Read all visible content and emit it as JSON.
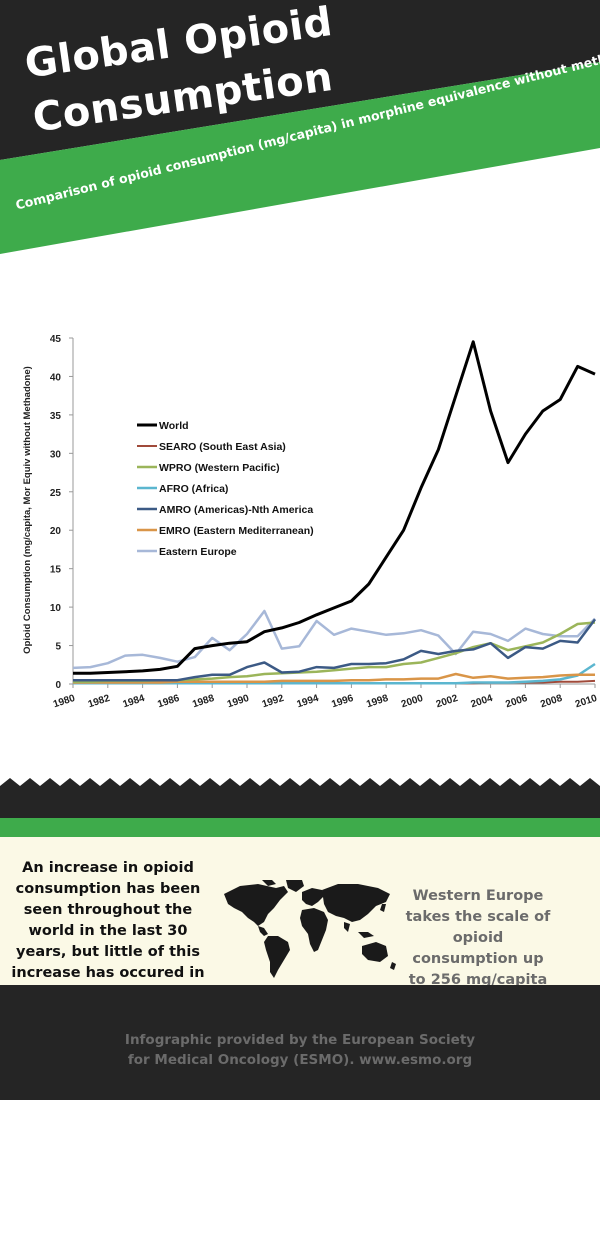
{
  "header": {
    "title_line1": "Global Opioid",
    "title_line2": "Consumption",
    "subtitle": "Comparison of opioid consumption (mg/capita) in morphine equivalence without methadone",
    "colors": {
      "dark": "#252525",
      "green": "#3eab4b"
    }
  },
  "chart_data": {
    "type": "line",
    "title": "",
    "xlabel": "",
    "ylabel": "Opioid Consumption (mg/capita, Mor Equiv without Methadone)",
    "xlim": [
      1980,
      2010
    ],
    "ylim": [
      0,
      45
    ],
    "yticks": [
      0,
      5,
      10,
      15,
      20,
      25,
      30,
      35,
      40,
      45
    ],
    "xticks": [
      1980,
      1982,
      1984,
      1986,
      1988,
      1990,
      1992,
      1994,
      1996,
      1998,
      2000,
      2002,
      2004,
      2006,
      2008,
      2010
    ],
    "grid": false,
    "legend": "upper-left",
    "x": [
      1980,
      1981,
      1982,
      1983,
      1984,
      1985,
      1986,
      1987,
      1988,
      1989,
      1990,
      1991,
      1992,
      1993,
      1994,
      1995,
      1996,
      1997,
      1998,
      1999,
      2000,
      2001,
      2002,
      2003,
      2004,
      2005,
      2006,
      2007,
      2008,
      2009,
      2010
    ],
    "series": [
      {
        "name": "World",
        "color": "#000000",
        "width": 3,
        "values": [
          1.4,
          1.4,
          1.5,
          1.6,
          1.7,
          1.9,
          2.3,
          4.6,
          5.0,
          5.3,
          5.5,
          6.8,
          7.3,
          8.0,
          9.0,
          9.9,
          10.8,
          13.0,
          16.5,
          20.0,
          25.5,
          30.5,
          37.5,
          44.5,
          35.5,
          28.8,
          32.5,
          35.5,
          37.0,
          41.3,
          40.3
        ]
      },
      {
        "name": "SEARO (South East Asia)",
        "color": "#a04a3a",
        "width": 2,
        "values": [
          0.1,
          0.1,
          0.1,
          0.1,
          0.1,
          0.1,
          0.1,
          0.1,
          0.1,
          0.1,
          0.1,
          0.1,
          0.1,
          0.1,
          0.1,
          0.1,
          0.1,
          0.1,
          0.1,
          0.1,
          0.1,
          0.1,
          0.1,
          0.1,
          0.2,
          0.2,
          0.2,
          0.2,
          0.3,
          0.3,
          0.4
        ]
      },
      {
        "name": "WPRO (Western Pacific)",
        "color": "#9bb55a",
        "width": 2.5,
        "values": [
          0.3,
          0.3,
          0.4,
          0.4,
          0.4,
          0.5,
          0.5,
          0.6,
          0.7,
          0.9,
          1.0,
          1.3,
          1.4,
          1.5,
          1.6,
          1.8,
          2.0,
          2.2,
          2.2,
          2.6,
          2.8,
          3.4,
          4.0,
          4.8,
          5.3,
          4.4,
          4.9,
          5.4,
          6.5,
          7.8,
          8.0
        ]
      },
      {
        "name": "AFRO (Africa)",
        "color": "#5bb6cf",
        "width": 2.5,
        "values": [
          0.1,
          0.1,
          0.1,
          0.1,
          0.1,
          0.1,
          0.1,
          0.1,
          0.1,
          0.1,
          0.1,
          0.1,
          0.1,
          0.1,
          0.1,
          0.1,
          0.1,
          0.1,
          0.1,
          0.1,
          0.1,
          0.1,
          0.1,
          0.2,
          0.2,
          0.2,
          0.3,
          0.4,
          0.6,
          1.1,
          2.6
        ]
      },
      {
        "name": "AMRO (Americas)-Nth America",
        "color": "#3c5a85",
        "width": 2.5,
        "values": [
          0.5,
          0.5,
          0.5,
          0.5,
          0.5,
          0.5,
          0.5,
          0.9,
          1.2,
          1.2,
          2.2,
          2.8,
          1.5,
          1.6,
          2.2,
          2.1,
          2.6,
          2.6,
          2.7,
          3.2,
          4.3,
          3.9,
          4.3,
          4.5,
          5.3,
          3.4,
          4.8,
          4.6,
          5.6,
          5.4,
          8.4
        ]
      },
      {
        "name": "EMRO (Eastern Mediterranean)",
        "color": "#d99548",
        "width": 2.5,
        "values": [
          0.2,
          0.2,
          0.2,
          0.2,
          0.2,
          0.2,
          0.3,
          0.3,
          0.3,
          0.3,
          0.3,
          0.3,
          0.4,
          0.4,
          0.4,
          0.4,
          0.5,
          0.5,
          0.6,
          0.6,
          0.7,
          0.7,
          1.3,
          0.8,
          1.0,
          0.7,
          0.8,
          0.9,
          1.1,
          1.2,
          1.2
        ]
      },
      {
        "name": "Eastern Europe",
        "color": "#a7b8d8",
        "width": 2.5,
        "values": [
          2.1,
          2.2,
          2.7,
          3.7,
          3.8,
          3.4,
          2.9,
          3.5,
          6.0,
          4.4,
          6.5,
          9.5,
          4.6,
          4.9,
          8.2,
          6.4,
          7.2,
          6.8,
          6.4,
          6.6,
          7.0,
          6.3,
          3.9,
          6.8,
          6.5,
          5.6,
          7.2,
          6.5,
          6.2,
          6.2,
          8.5
        ]
      }
    ]
  },
  "info": {
    "left_text": "An increase in opioid consumption has been seen throughout the world in the last 30 years, but little of this increase has occured in low- and middle-income countries",
    "right_text": "Western Europe takes the scale of opioid consumption up to 256 mg/capita",
    "map_icon": "world-map-icon",
    "colors": {
      "panel": "#fbf9e6",
      "left_text": "#111111",
      "right_text": "#6b6b6b"
    }
  },
  "footer": {
    "line1": "Infographic provided by the European Society",
    "line2": "for Medical Oncology (ESMO). www.esmo.org"
  }
}
